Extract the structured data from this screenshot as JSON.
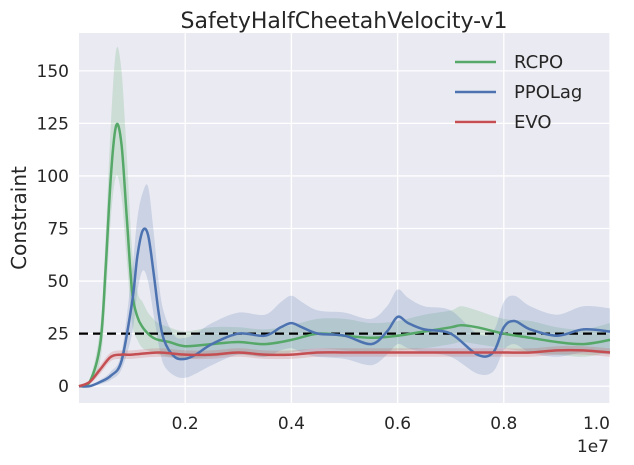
{
  "chart_data": {
    "type": "line",
    "title": "SafetyHalfCheetahVelocity-v1",
    "xlabel": "",
    "ylabel": "Constraint",
    "x_scale_label": "1e7",
    "xlim": [
      0.0,
      1.0
    ],
    "ylim": [
      -8,
      168
    ],
    "x_ticks": [
      0.2,
      0.4,
      0.6,
      0.8,
      1.0
    ],
    "x_tick_labels": [
      "0.2",
      "0.4",
      "0.6",
      "0.8",
      "1.0"
    ],
    "y_ticks": [
      0,
      25,
      50,
      75,
      100,
      125,
      150
    ],
    "y_tick_labels": [
      "0",
      "25",
      "50",
      "75",
      "100",
      "125",
      "150"
    ],
    "grid": true,
    "legend_position": "top-right",
    "threshold": {
      "value": 25,
      "style": "dashed",
      "color": "#000000"
    },
    "series": [
      {
        "name": "RCPO",
        "color": "#55a868",
        "x": [
          0.0,
          0.02,
          0.04,
          0.05,
          0.06,
          0.07,
          0.08,
          0.09,
          0.1,
          0.11,
          0.12,
          0.13,
          0.14,
          0.15,
          0.17,
          0.2,
          0.25,
          0.3,
          0.35,
          0.4,
          0.45,
          0.5,
          0.55,
          0.6,
          0.65,
          0.7,
          0.72,
          0.75,
          0.8,
          0.85,
          0.9,
          0.95,
          1.0
        ],
        "y": [
          0,
          2,
          20,
          55,
          100,
          124,
          115,
          80,
          45,
          33,
          28,
          25,
          23,
          22,
          21,
          19,
          20,
          21,
          20,
          22,
          25,
          24,
          23,
          24,
          26,
          28,
          29,
          28,
          25,
          23,
          21,
          20,
          22
        ],
        "lower": [
          0,
          1,
          12,
          40,
          80,
          100,
          90,
          60,
          30,
          22,
          18,
          17,
          16,
          15,
          14,
          13,
          14,
          15,
          14,
          16,
          18,
          17,
          16,
          17,
          18,
          20,
          21,
          20,
          18,
          16,
          15,
          14,
          16
        ],
        "upper": [
          0,
          3,
          28,
          70,
          125,
          160,
          150,
          110,
          65,
          45,
          40,
          35,
          32,
          30,
          28,
          26,
          28,
          28,
          27,
          29,
          32,
          32,
          30,
          31,
          34,
          36,
          38,
          36,
          32,
          31,
          28,
          27,
          30
        ]
      },
      {
        "name": "PPOLag",
        "color": "#4c72b0",
        "x": [
          0.0,
          0.02,
          0.04,
          0.06,
          0.08,
          0.1,
          0.11,
          0.12,
          0.13,
          0.14,
          0.15,
          0.16,
          0.18,
          0.2,
          0.22,
          0.25,
          0.3,
          0.35,
          0.38,
          0.4,
          0.42,
          0.45,
          0.5,
          0.55,
          0.58,
          0.6,
          0.62,
          0.65,
          0.7,
          0.75,
          0.78,
          0.8,
          0.82,
          0.85,
          0.9,
          0.95,
          1.0
        ],
        "y": [
          0,
          0,
          2,
          5,
          12,
          40,
          62,
          74,
          72,
          55,
          35,
          22,
          14,
          13,
          15,
          20,
          25,
          24,
          28,
          30,
          28,
          25,
          24,
          20,
          26,
          33,
          30,
          27,
          25,
          15,
          16,
          28,
          31,
          27,
          24,
          27,
          26
        ],
        "lower": [
          0,
          0,
          1,
          3,
          8,
          25,
          45,
          55,
          50,
          35,
          20,
          10,
          5,
          4,
          6,
          10,
          15,
          14,
          17,
          18,
          16,
          14,
          13,
          10,
          15,
          20,
          18,
          16,
          14,
          6,
          7,
          17,
          20,
          16,
          14,
          16,
          15
        ],
        "upper": [
          0,
          0,
          3,
          7,
          16,
          55,
          80,
          92,
          95,
          75,
          50,
          35,
          24,
          23,
          25,
          30,
          35,
          34,
          40,
          43,
          40,
          36,
          35,
          32,
          38,
          46,
          42,
          38,
          36,
          25,
          26,
          40,
          43,
          38,
          34,
          38,
          37
        ]
      },
      {
        "name": "EVO",
        "color": "#c44e52",
        "x": [
          0.0,
          0.02,
          0.04,
          0.06,
          0.08,
          0.1,
          0.15,
          0.2,
          0.25,
          0.3,
          0.35,
          0.4,
          0.45,
          0.5,
          0.55,
          0.6,
          0.65,
          0.7,
          0.75,
          0.8,
          0.85,
          0.9,
          0.95,
          1.0
        ],
        "y": [
          0,
          2,
          8,
          14,
          15,
          15,
          16,
          15,
          15,
          16,
          15,
          15,
          16,
          16,
          16,
          16,
          16,
          16,
          16,
          16,
          16,
          17,
          17,
          16
        ],
        "lower": [
          0,
          1,
          6,
          12,
          13,
          13,
          14,
          13,
          13,
          14,
          13,
          13,
          14,
          14,
          14,
          14,
          14,
          14,
          14,
          14,
          14,
          15,
          15,
          14
        ],
        "upper": [
          0,
          3,
          10,
          16,
          17,
          17,
          18,
          17,
          17,
          18,
          17,
          17,
          18,
          18,
          18,
          18,
          18,
          18,
          18,
          18,
          18,
          19,
          19,
          18
        ]
      }
    ]
  }
}
